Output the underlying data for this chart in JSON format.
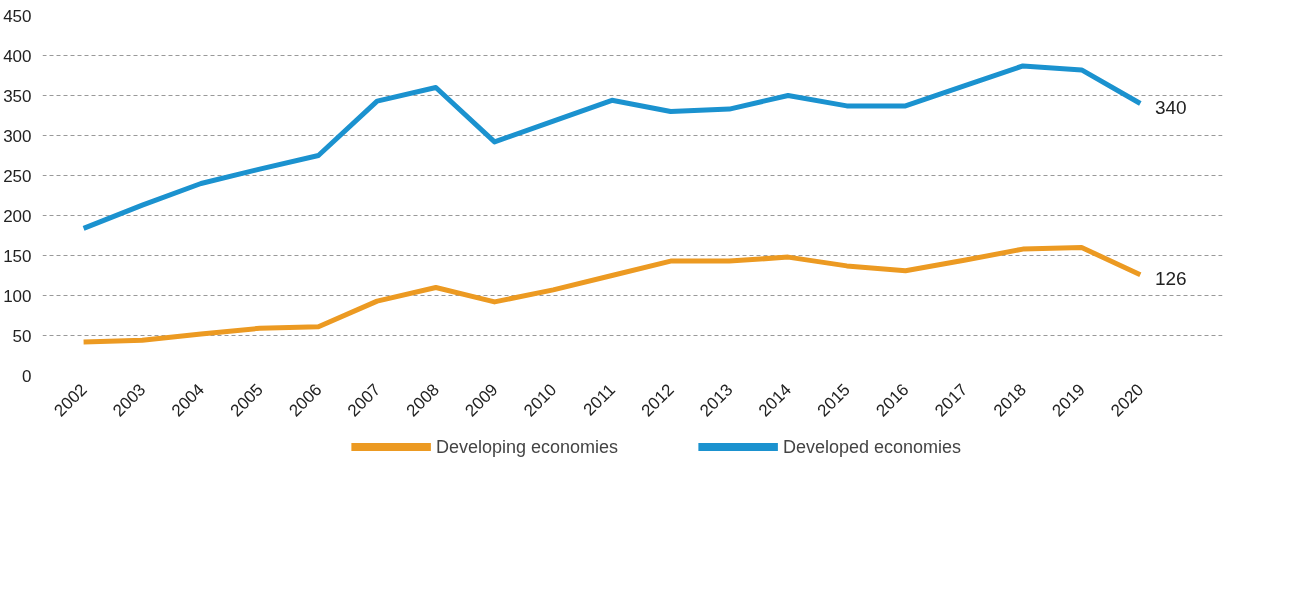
{
  "chart_data": {
    "type": "line",
    "categories": [
      "2002",
      "2003",
      "2004",
      "2005",
      "2006",
      "2007",
      "2008",
      "2009",
      "2010",
      "2011",
      "2012",
      "2013",
      "2014",
      "2015",
      "2016",
      "2017",
      "2018",
      "2019",
      "2020"
    ],
    "series": [
      {
        "name": "Developing economies",
        "color": "#ec9a22",
        "values": [
          42,
          44,
          52,
          59,
          61,
          93,
          110,
          92,
          107,
          125,
          143,
          143,
          148,
          137,
          131,
          144,
          158,
          160,
          126
        ]
      },
      {
        "name": "Developed economies",
        "color": "#1b92cf",
        "values": [
          184,
          213,
          240,
          258,
          275,
          343,
          360,
          292,
          318,
          344,
          330,
          333,
          350,
          337,
          337,
          362,
          387,
          382,
          340
        ]
      }
    ],
    "ylim": [
      0,
      450
    ],
    "yticks": [
      0,
      50,
      100,
      150,
      200,
      250,
      300,
      350,
      400,
      450
    ],
    "grid": "y",
    "legend": "bottom",
    "annotations": [
      {
        "text": "340",
        "x": "2020",
        "y": 340
      },
      {
        "text": "126",
        "x": "2020",
        "y": 126
      }
    ]
  }
}
